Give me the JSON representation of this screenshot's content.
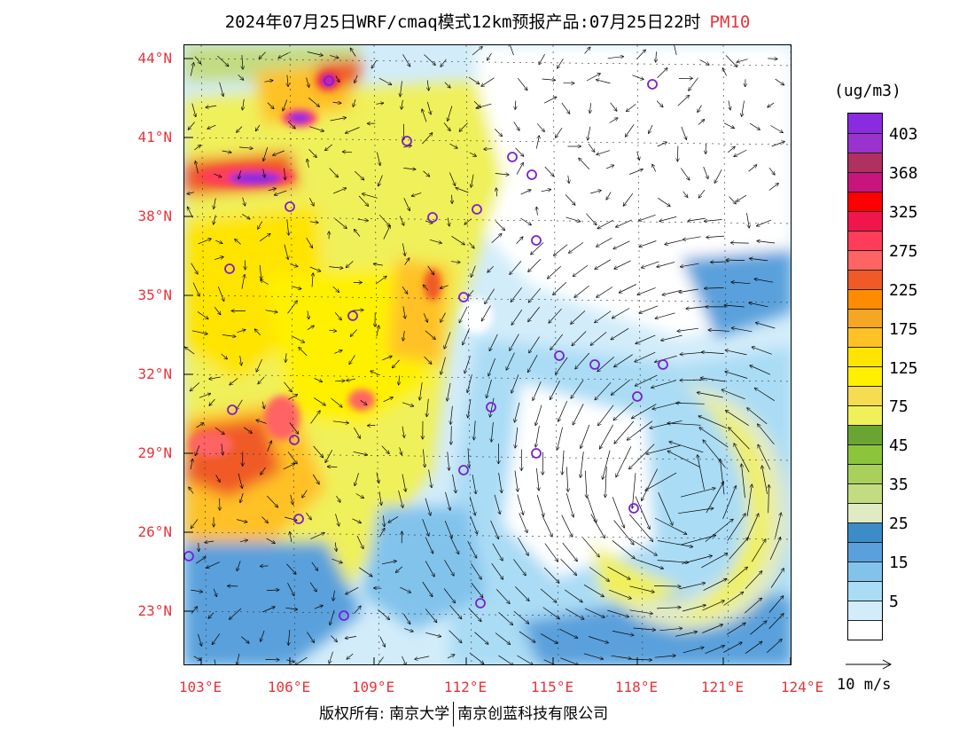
{
  "title": {
    "main": "2024年07月25日WRF/cmaq模式12km预报产品:07月25日22时",
    "pollutant": "PM10",
    "pollutant_color": "#e8333a"
  },
  "axes": {
    "lat_labels": [
      "44°N",
      "41°N",
      "38°N",
      "35°N",
      "32°N",
      "29°N",
      "26°N",
      "23°N"
    ],
    "lon_labels": [
      "103°E",
      "106°E",
      "109°E",
      "112°E",
      "115°E",
      "118°E",
      "121°E",
      "124°E"
    ],
    "label_color": "#e8333a"
  },
  "colorbar": {
    "unit": "(ug/m3)",
    "colors": [
      "#8a2be2",
      "#9a32cd",
      "#b03060",
      "#c8157d",
      "#ff0000",
      "#f0164c",
      "#ff3d5a",
      "#ff6464",
      "#ef5a28",
      "#ff8c00",
      "#f5a623",
      "#ffc125",
      "#ffe400",
      "#fff000",
      "#f5dc50",
      "#f0f05a",
      "#6aa534",
      "#8cc43c",
      "#a8d05a",
      "#c3dc82",
      "#e1ebc3",
      "#3c8cc8",
      "#5aa0dc",
      "#82c3ec",
      "#aadcf5",
      "#d2ecfa",
      "#ffffff"
    ],
    "labels": [
      "403",
      "368",
      "325",
      "275",
      "225",
      "175",
      "125",
      "75",
      "45",
      "35",
      "25",
      "15",
      "5"
    ]
  },
  "wind_reference": "10 m/s",
  "footer": {
    "copyright": "版权所有: 南京大学",
    "company": "南京创蓝科技有限公司"
  },
  "stations_count_note": ""
}
